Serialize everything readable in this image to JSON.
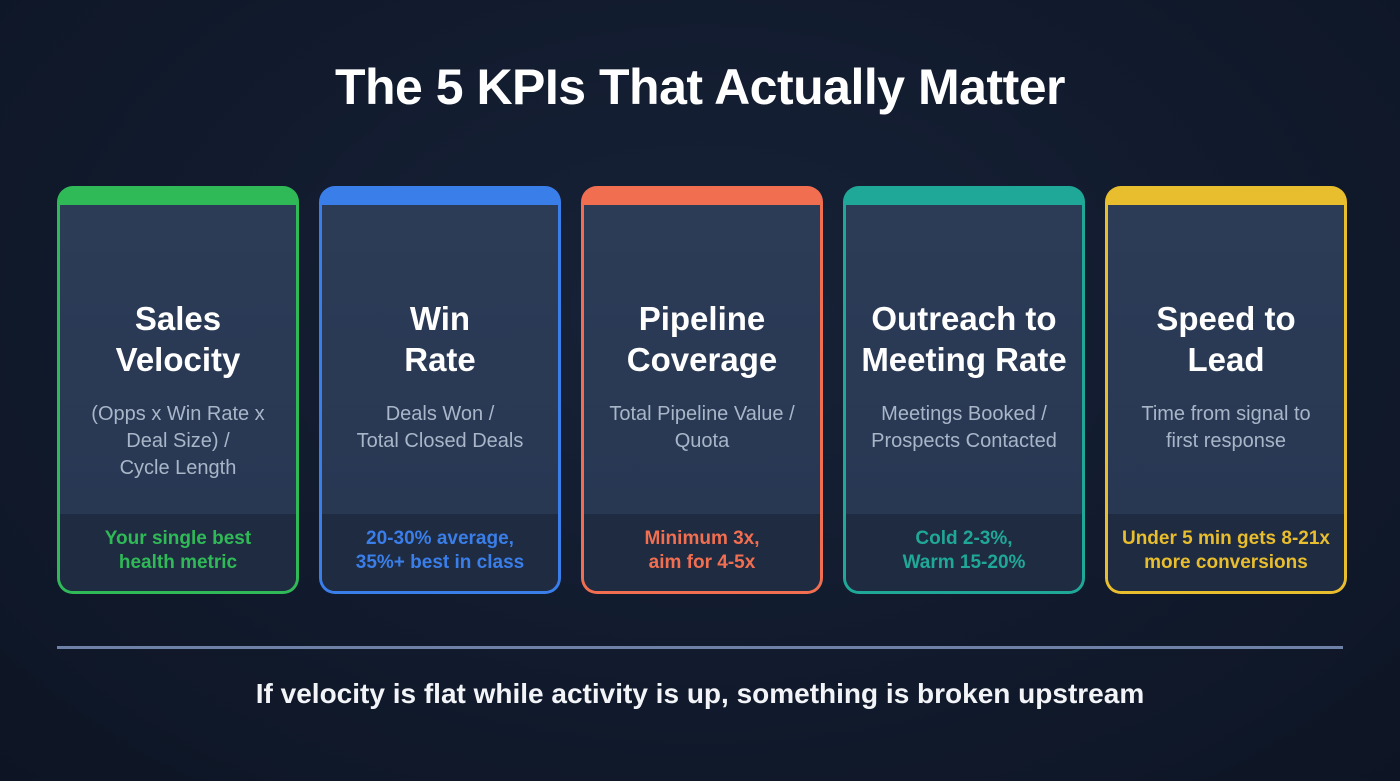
{
  "title": "The 5 KPIs That Actually Matter",
  "cards": [
    {
      "name": "Sales\nVelocity",
      "formula": "(Opps x Win Rate x\nDeal Size) /\nCycle Length",
      "note": "Your single best\nhealth metric",
      "color": "#2fba57"
    },
    {
      "name": "Win\nRate",
      "formula": "Deals Won /\nTotal Closed Deals",
      "note": "20-30% average,\n35%+ best in class",
      "color": "#3a7eea"
    },
    {
      "name": "Pipeline\nCoverage",
      "formula": "Total Pipeline Value /\nQuota",
      "note": "Minimum 3x,\naim for 4-5x",
      "color": "#f26e50"
    },
    {
      "name": "Outreach to\nMeeting Rate",
      "formula": "Meetings Booked /\nProspects Contacted",
      "note": "Cold 2-3%,\nWarm 15-20%",
      "color": "#1fa897"
    },
    {
      "name": "Speed to\nLead",
      "formula": "Time from signal to\nfirst response",
      "note": "Under 5 min gets 8-21x\nmore conversions",
      "color": "#e8bd2e"
    }
  ],
  "footer": "If velocity is flat while activity is up, something is broken upstream"
}
